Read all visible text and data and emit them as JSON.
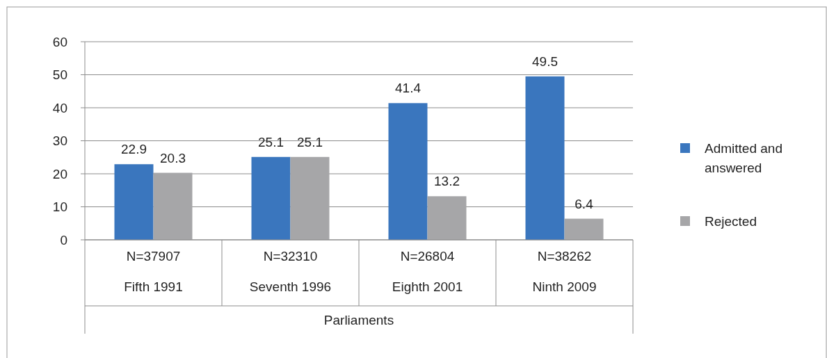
{
  "chart_data": {
    "type": "bar",
    "xlabel": "Parliaments",
    "categories": [
      "N=37907\nFifth 1991",
      "N=32310\nSeventh 1996",
      "N=26804\nEighth 2001",
      "N=38262\nNinth 2009"
    ],
    "series": [
      {
        "name": "Admitted and answered",
        "color": "#3a76be",
        "values": [
          22.9,
          25.1,
          41.4,
          49.5
        ]
      },
      {
        "name": "Rejected",
        "color": "#a6a6a8",
        "values": [
          20.3,
          25.1,
          13.2,
          6.4
        ]
      }
    ],
    "ylim": [
      0,
      60
    ],
    "yticks": [
      0,
      10,
      20,
      30,
      40,
      50,
      60
    ],
    "grid": "y",
    "legend": "right",
    "data_labels": true
  }
}
